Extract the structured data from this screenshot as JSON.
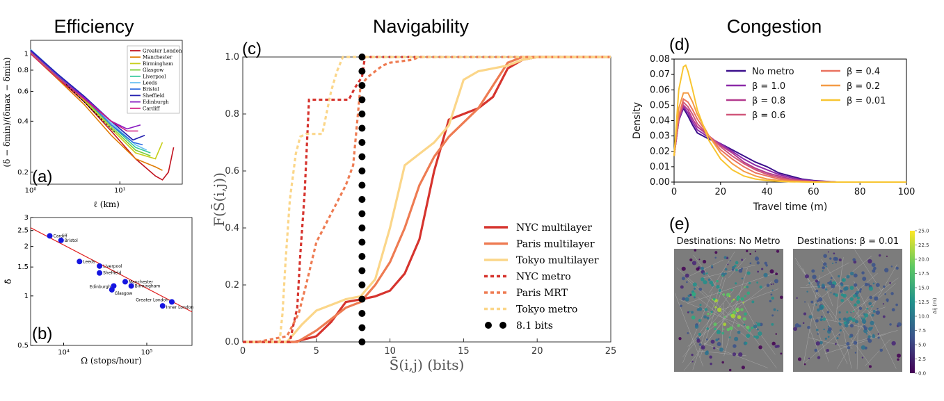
{
  "section_titles": {
    "efficiency": "Efficiency",
    "navigability": "Navigability",
    "congestion": "Congestion"
  },
  "panel_labels": {
    "a": "(a)",
    "b": "(b)",
    "c": "(c)",
    "d": "(d)",
    "e": "(e)"
  },
  "chart_data": [
    {
      "id": "a",
      "type": "line",
      "xscale": "log",
      "yscale": "log",
      "xlabel": "ℓ (km)",
      "ylabel": "(δ − δmin)/(δmax − δmin)",
      "xlim": [
        1,
        50
      ],
      "ylim": [
        0.17,
        1.2
      ],
      "xticks": [
        {
          "v": 1,
          "t": "10⁰"
        },
        {
          "v": 10,
          "t": "10¹"
        }
      ],
      "yticks": [
        {
          "v": 0.2,
          "t": "0.2"
        },
        {
          "v": 0.4,
          "t": "0.4"
        },
        {
          "v": 0.6,
          "t": "0.6"
        },
        {
          "v": 0.8,
          "t": "0.8"
        },
        {
          "v": 1,
          "t": "1"
        }
      ],
      "legend_position": "top-right",
      "series": [
        {
          "name": "Greater London",
          "color": "#c1121f",
          "x": [
            1,
            2,
            4,
            8,
            15,
            25,
            30,
            35,
            40
          ],
          "y": [
            1.0,
            0.72,
            0.52,
            0.35,
            0.24,
            0.19,
            0.18,
            0.2,
            0.28
          ]
        },
        {
          "name": "Manchester",
          "color": "#e07b00",
          "x": [
            1,
            2,
            4,
            8,
            15,
            25,
            30
          ],
          "y": [
            1.0,
            0.71,
            0.5,
            0.33,
            0.24,
            0.215,
            0.205
          ]
        },
        {
          "name": "Birmingham",
          "color": "#c7cf1a",
          "x": [
            1,
            2,
            4,
            8,
            15,
            25,
            30
          ],
          "y": [
            1.02,
            0.73,
            0.53,
            0.36,
            0.26,
            0.24,
            0.3
          ]
        },
        {
          "name": "Glasgow",
          "color": "#7ccf3a",
          "x": [
            1,
            2,
            4,
            8,
            15,
            22
          ],
          "y": [
            1.03,
            0.74,
            0.54,
            0.37,
            0.27,
            0.25
          ]
        },
        {
          "name": "Liverpool",
          "color": "#33c79c",
          "x": [
            1,
            2,
            4,
            8,
            15,
            22
          ],
          "y": [
            1.05,
            0.75,
            0.55,
            0.38,
            0.28,
            0.26
          ]
        },
        {
          "name": "Leeds",
          "color": "#6ec2f2",
          "x": [
            1,
            2,
            4,
            8,
            15,
            20
          ],
          "y": [
            1.06,
            0.76,
            0.56,
            0.39,
            0.29,
            0.27
          ]
        },
        {
          "name": "Bristol",
          "color": "#2d6be0",
          "x": [
            1,
            2,
            4,
            8,
            14,
            18
          ],
          "y": [
            1.04,
            0.75,
            0.55,
            0.38,
            0.3,
            0.29
          ]
        },
        {
          "name": "Sheffield",
          "color": "#2420b0",
          "x": [
            1,
            2,
            4,
            8,
            14,
            19
          ],
          "y": [
            1.05,
            0.76,
            0.56,
            0.4,
            0.31,
            0.33
          ]
        },
        {
          "name": "Edinburgh",
          "color": "#8a1ec2",
          "x": [
            1,
            2,
            4,
            8,
            12,
            17
          ],
          "y": [
            1.03,
            0.74,
            0.55,
            0.4,
            0.36,
            0.38
          ]
        },
        {
          "name": "Cardiff",
          "color": "#d01880",
          "x": [
            1,
            2,
            4,
            8,
            12,
            16
          ],
          "y": [
            1.0,
            0.72,
            0.54,
            0.4,
            0.35,
            0.35
          ]
        }
      ]
    },
    {
      "id": "b",
      "type": "scatter",
      "xscale": "log",
      "yscale": "log",
      "xlabel": "Ω (stops/hour)",
      "ylabel": "δ̄",
      "xlim": [
        4000,
        350000
      ],
      "ylim": [
        0.5,
        3
      ],
      "xticks": [
        {
          "v": 10000,
          "t": "10⁴"
        },
        {
          "v": 100000,
          "t": "10⁵"
        }
      ],
      "yticks": [
        {
          "v": 0.5,
          "t": "0.5"
        },
        {
          "v": 1,
          "t": "1"
        },
        {
          "v": 1.5,
          "t": "1.5"
        },
        {
          "v": 2,
          "t": "2"
        },
        {
          "v": 2.5,
          "t": "2.5"
        },
        {
          "v": 3,
          "t": "3"
        }
      ],
      "fit_line": {
        "x": [
          4000,
          350000
        ],
        "y": [
          2.6,
          0.8
        ],
        "color": "#e02020"
      },
      "points": [
        {
          "label": "Cardiff",
          "x": 6800,
          "y": 2.32
        },
        {
          "label": "Bristol",
          "x": 9300,
          "y": 2.18
        },
        {
          "label": "Leeds",
          "x": 15500,
          "y": 1.62
        },
        {
          "label": "Liverpool",
          "x": 27000,
          "y": 1.52
        },
        {
          "label": "Sheffield",
          "x": 27000,
          "y": 1.38
        },
        {
          "label": "Manchester",
          "x": 55000,
          "y": 1.22
        },
        {
          "label": "Birmingham",
          "x": 65000,
          "y": 1.15
        },
        {
          "label": "Edinburgh",
          "x": 40000,
          "y": 1.15
        },
        {
          "label": "Glasgow",
          "x": 38000,
          "y": 1.09
        },
        {
          "label": "Greater London",
          "x": 200000,
          "y": 0.92
        },
        {
          "label": "Inner London",
          "x": 155000,
          "y": 0.87
        }
      ]
    },
    {
      "id": "c",
      "type": "line",
      "xlabel": "S̄(i,j) (bits)",
      "ylabel": "F(S̄(i,j))",
      "xlim": [
        0,
        25
      ],
      "ylim": [
        0,
        1
      ],
      "xticks": [
        0,
        5,
        10,
        15,
        20,
        25
      ],
      "yticks": [
        0.0,
        0.2,
        0.4,
        0.6,
        0.8,
        1.0
      ],
      "legend_position": "lower-right",
      "series": [
        {
          "name": "NYC multilayer",
          "color": "#d6342e",
          "dash": "",
          "x": [
            0,
            3.5,
            5,
            6,
            7,
            8.1,
            9,
            10,
            11,
            12,
            13,
            14,
            15,
            16,
            17,
            18,
            19,
            20,
            25
          ],
          "y": [
            0,
            0,
            0.02,
            0.07,
            0.14,
            0.15,
            0.16,
            0.18,
            0.24,
            0.36,
            0.6,
            0.78,
            0.8,
            0.82,
            0.86,
            0.96,
            0.99,
            1,
            1
          ]
        },
        {
          "name": "Paris multilayer",
          "color": "#ee7b52",
          "dash": "",
          "x": [
            0,
            3.7,
            5,
            6,
            7,
            8,
            9,
            10,
            11,
            12,
            13,
            14,
            15,
            16,
            17,
            18,
            19,
            20,
            25
          ],
          "y": [
            0,
            0,
            0.04,
            0.08,
            0.12,
            0.14,
            0.2,
            0.28,
            0.4,
            0.55,
            0.65,
            0.72,
            0.77,
            0.82,
            0.9,
            0.98,
            1,
            1,
            1
          ]
        },
        {
          "name": "Tokyo multilayer",
          "color": "#fbd689",
          "dash": "",
          "x": [
            0,
            3,
            4,
            5,
            6,
            7,
            8,
            9,
            10,
            11,
            12,
            13,
            14,
            15,
            16,
            17,
            18,
            19,
            20,
            25
          ],
          "y": [
            0,
            0,
            0.06,
            0.11,
            0.13,
            0.15,
            0.16,
            0.22,
            0.4,
            0.62,
            0.66,
            0.7,
            0.76,
            0.92,
            0.95,
            0.96,
            0.97,
            0.99,
            1,
            1
          ]
        },
        {
          "name": "NYC metro",
          "color": "#d6342e",
          "dash": "5,4",
          "x": [
            0,
            3.2,
            3.4,
            3.7,
            3.9,
            4.2,
            4.5,
            7.2,
            7.6,
            8.1,
            8.3,
            25
          ],
          "y": [
            0,
            0,
            0.05,
            0.12,
            0.3,
            0.52,
            0.85,
            0.85,
            0.89,
            0.93,
            1,
            1
          ]
        },
        {
          "name": "Paris MRT",
          "color": "#ee7b52",
          "dash": "5,4",
          "x": [
            1,
            3,
            3.8,
            4.3,
            5,
            6,
            7,
            7.5,
            8,
            8.5,
            9.5,
            10,
            11.5,
            12,
            25
          ],
          "y": [
            0,
            0.02,
            0.1,
            0.2,
            0.35,
            0.45,
            0.55,
            0.62,
            0.9,
            0.93,
            0.97,
            0.98,
            0.99,
            1,
            1
          ]
        },
        {
          "name": "Tokyo metro",
          "color": "#fbd689",
          "dash": "5,4",
          "x": [
            2.5,
            2.7,
            2.9,
            3.2,
            3.6,
            3.9,
            4.3,
            5.4,
            6,
            6.4,
            6.8,
            25
          ],
          "y": [
            0,
            0.1,
            0.28,
            0.5,
            0.66,
            0.72,
            0.73,
            0.73,
            0.88,
            0.95,
            1,
            1
          ]
        }
      ],
      "reference": {
        "name": "8.1 bits",
        "x": 8.1,
        "color": "#000000"
      }
    },
    {
      "id": "d",
      "type": "line",
      "xlabel": "Travel time (m)",
      "ylabel": "Density",
      "xlim": [
        0,
        100
      ],
      "ylim": [
        0,
        0.08
      ],
      "xticks": [
        0,
        20,
        40,
        60,
        80,
        100
      ],
      "yticks": [
        0.0,
        0.01,
        0.02,
        0.03,
        0.04,
        0.05,
        0.06,
        0.07,
        0.08
      ],
      "legend_position": "upper-center",
      "series": [
        {
          "name": "No metro",
          "color": "#3b0f8c",
          "x": [
            0,
            2,
            4,
            6,
            8,
            10,
            15,
            20,
            25,
            30,
            35,
            40,
            45,
            50,
            55,
            60,
            70,
            100
          ],
          "y": [
            0.017,
            0.04,
            0.048,
            0.043,
            0.037,
            0.032,
            0.028,
            0.025,
            0.021,
            0.017,
            0.013,
            0.01,
            0.006,
            0.004,
            0.002,
            0.001,
            0,
            0
          ]
        },
        {
          "name": "β = 1.0",
          "color": "#8c2aa8",
          "x": [
            0,
            2,
            4,
            6,
            8,
            10,
            15,
            20,
            25,
            30,
            35,
            40,
            45,
            50,
            55,
            60,
            70,
            100
          ],
          "y": [
            0.017,
            0.04,
            0.049,
            0.045,
            0.039,
            0.034,
            0.029,
            0.025,
            0.02,
            0.015,
            0.011,
            0.008,
            0.005,
            0.003,
            0.0015,
            0.0008,
            0,
            0
          ]
        },
        {
          "name": "β = 0.8",
          "color": "#b33a8e",
          "x": [
            0,
            2,
            4,
            6,
            8,
            10,
            15,
            20,
            25,
            30,
            35,
            40,
            45,
            50,
            55,
            60,
            70,
            100
          ],
          "y": [
            0.017,
            0.041,
            0.05,
            0.047,
            0.041,
            0.036,
            0.03,
            0.024,
            0.019,
            0.013,
            0.009,
            0.006,
            0.004,
            0.002,
            0.001,
            0.0005,
            0,
            0
          ]
        },
        {
          "name": "β = 0.6",
          "color": "#d0577a",
          "x": [
            0,
            2,
            4,
            6,
            8,
            10,
            15,
            20,
            25,
            30,
            35,
            40,
            45,
            50,
            55,
            60,
            70,
            100
          ],
          "y": [
            0.017,
            0.042,
            0.052,
            0.049,
            0.044,
            0.038,
            0.03,
            0.023,
            0.017,
            0.012,
            0.008,
            0.005,
            0.003,
            0.0015,
            0.0008,
            0.0003,
            0,
            0
          ]
        },
        {
          "name": "β = 0.4",
          "color": "#e9725f",
          "x": [
            0,
            2,
            4,
            6,
            8,
            10,
            15,
            20,
            25,
            30,
            35,
            40,
            45,
            50,
            55,
            60,
            70,
            100
          ],
          "y": [
            0.017,
            0.043,
            0.054,
            0.052,
            0.047,
            0.041,
            0.03,
            0.021,
            0.015,
            0.01,
            0.006,
            0.004,
            0.002,
            0.001,
            0.0005,
            0.0002,
            0,
            0
          ]
        },
        {
          "name": "β = 0.2",
          "color": "#f49a45",
          "x": [
            0,
            2,
            4,
            6,
            8,
            10,
            15,
            20,
            25,
            30,
            35,
            40,
            45,
            50,
            55,
            60,
            70,
            100
          ],
          "y": [
            0.017,
            0.048,
            0.058,
            0.058,
            0.052,
            0.044,
            0.03,
            0.019,
            0.012,
            0.007,
            0.004,
            0.002,
            0.001,
            0.0005,
            0.0002,
            0,
            0,
            0
          ]
        },
        {
          "name": "β = 0.01",
          "color": "#f8c531",
          "x": [
            0,
            2,
            4,
            5,
            6,
            8,
            10,
            15,
            20,
            25,
            30,
            35,
            40,
            45,
            50,
            60,
            100
          ],
          "y": [
            0.017,
            0.06,
            0.075,
            0.076,
            0.072,
            0.06,
            0.047,
            0.027,
            0.015,
            0.008,
            0.004,
            0.002,
            0.001,
            0.0005,
            0.0002,
            0,
            0
          ]
        }
      ]
    }
  ],
  "maps": {
    "left_title": "Destinations: No Metro",
    "right_title": "Destinations: β = 0.01",
    "colorbar_label": "Δij (m)",
    "colorbar_ticks": [
      "25.0",
      "22.5",
      "20.0",
      "17.5",
      "15.0",
      "12.5",
      "10.0",
      "7.5",
      "5.0",
      "2.5",
      "0.0"
    ]
  }
}
